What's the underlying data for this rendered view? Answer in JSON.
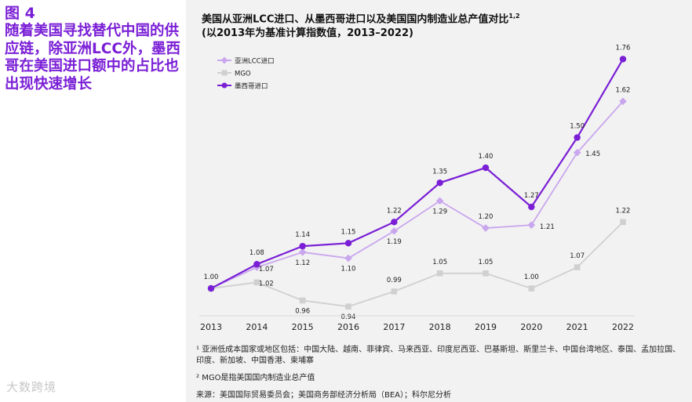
{
  "figure": {
    "label": "图 4",
    "title": "随着美国寻找替代中国的供应链，除亚洲LCC外，墨西哥在美国进口额中的占比也出现快速增长"
  },
  "watermark": "大数跨境",
  "chart_data": {
    "type": "line",
    "title": "美国从亚洲LCC进口、从墨西哥进口以及美国国内制造业总产值对比",
    "title_superscript": "1,2",
    "subtitle": "(以2013年为基准计算指数值，2013–2022)",
    "x": [
      "2013",
      "2014",
      "2015",
      "2016",
      "2017",
      "2018",
      "2019",
      "2020",
      "2021",
      "2022"
    ],
    "legend_position": "top-left",
    "series": [
      {
        "name": "亚洲LCC进口",
        "marker": "diamond",
        "color": "#c9a6ee",
        "values": [
          1.0,
          1.07,
          1.12,
          1.1,
          1.19,
          1.29,
          1.2,
          1.21,
          1.45,
          1.62
        ],
        "labels": [
          "",
          "1.07",
          "1.12",
          "1.10",
          "1.19",
          "1.29",
          "1.20",
          "1.21",
          "1.45",
          "1.62"
        ]
      },
      {
        "name": "MGO",
        "marker": "square",
        "color": "#d0d0d0",
        "values": [
          1.0,
          1.02,
          0.96,
          0.94,
          0.99,
          1.05,
          1.05,
          1.0,
          1.07,
          1.22
        ],
        "labels": [
          "",
          "1.02",
          "0.96",
          "0.94",
          "0.99",
          "1.05",
          "1.05",
          "1.00",
          "1.07",
          "1.22"
        ]
      },
      {
        "name": "墨西哥进口",
        "marker": "circle",
        "color": "#7a1fd6",
        "values": [
          1.0,
          1.08,
          1.14,
          1.15,
          1.22,
          1.35,
          1.4,
          1.27,
          1.5,
          1.76
        ],
        "labels": [
          "1.00",
          "1.08",
          "1.14",
          "1.15",
          "1.22",
          "1.35",
          "1.40",
          "1.27",
          "1.50",
          "1.76"
        ]
      }
    ],
    "ylim": [
      0.93,
      1.8
    ]
  },
  "footnotes": {
    "note1": "¹ 亚洲低成本国家或地区包括：中国大陆、越南、菲律宾、马来西亚、印度尼西亚、巴基斯坦、斯里兰卡、中国台湾地区、泰国、孟加拉国、印度、新加坡、中国香港、柬埔寨",
    "note2": "² MGO是指美国国内制造业总产值",
    "source": "来源：美国国际贸易委员会；美国商务部经济分析局（BEA）；科尔尼分析"
  }
}
